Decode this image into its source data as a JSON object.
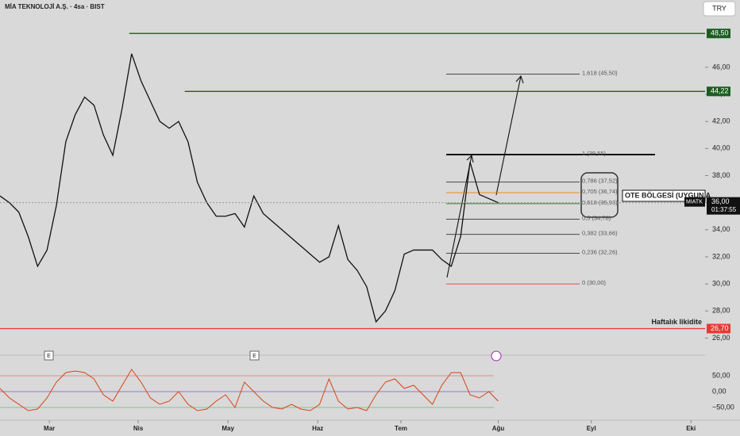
{
  "chart_data": {
    "type": "line",
    "title": "MİA TEKNOLOJİ A.Ş. · 4sa · BIST",
    "currency_button": "TRY",
    "xlim": [
      0,
      150
    ],
    "xticks": [
      {
        "value": 10.5,
        "label": "Mar"
      },
      {
        "value": 29.4,
        "label": "Nis"
      },
      {
        "value": 48.5,
        "label": "May"
      },
      {
        "value": 67.6,
        "label": "Haz"
      },
      {
        "value": 85.3,
        "label": "Tem"
      },
      {
        "value": 106,
        "label": "Ağu"
      },
      {
        "value": 125.8,
        "label": "Eyl"
      },
      {
        "value": 147,
        "label": "Eki"
      }
    ],
    "ylim": [
      25.5,
      49.8
    ],
    "yticks": [
      {
        "value": 26,
        "label": "26,00"
      },
      {
        "value": 28,
        "label": "28,00"
      },
      {
        "value": 30,
        "label": "30,00"
      },
      {
        "value": 32,
        "label": "32,00"
      },
      {
        "value": 34,
        "label": "34,00"
      },
      {
        "value": 36,
        "label": "36,00"
      },
      {
        "value": 38,
        "label": "38,00"
      },
      {
        "value": 40,
        "label": "40,00"
      },
      {
        "value": 42,
        "label": "42,00"
      },
      {
        "value": 44,
        "label": "44,00"
      },
      {
        "value": 46,
        "label": "46,00"
      }
    ],
    "x": [
      0,
      2,
      4,
      6,
      8,
      10,
      12,
      14,
      16,
      18,
      20,
      22,
      24,
      26,
      28,
      30,
      32,
      34,
      36,
      38,
      40,
      42,
      44,
      46,
      48,
      50,
      52,
      54,
      56,
      58,
      60,
      62,
      64,
      66,
      68,
      70,
      72,
      74,
      76,
      78,
      80,
      82,
      84,
      86,
      88,
      90,
      92,
      94,
      96,
      98,
      100,
      102,
      104,
      106
    ],
    "series": [
      {
        "color": "#111111",
        "values": [
          36.5,
          36,
          35.3,
          33.5,
          31.3,
          32.5,
          35.8,
          40.5,
          42.5,
          43.8,
          43.2,
          41,
          39.5,
          43,
          47,
          45,
          43.5,
          42,
          41.5,
          42,
          40.5,
          37.5,
          36,
          35,
          35,
          35.2,
          34.2,
          36.5,
          35.2,
          34.6,
          34,
          33.4,
          32.8,
          32.2,
          31.6,
          32,
          34.3,
          31.8,
          31,
          29.8,
          27.2,
          28,
          29.5,
          32.2,
          32.5,
          32.5,
          32.5,
          31.8,
          31.3,
          33.5,
          39,
          36.6,
          36.3,
          36
        ]
      }
    ],
    "levels": [
      {
        "value": 48.5,
        "label": "48,50",
        "color": "#1b5e20",
        "start": 27.5
      },
      {
        "value": 44.22,
        "label": "44,22",
        "color": "#1b5e20",
        "start": 39.3
      },
      {
        "value": 26.7,
        "label": "26,70",
        "color": "#e53935",
        "start": 0,
        "text": "Haftalık likidite"
      }
    ],
    "fib_levels": [
      {
        "value": 45.5,
        "label": "1,618 (45,50)",
        "color": "#333333"
      },
      {
        "value": 39.55,
        "label": "1 (39,55)",
        "color": "#111111"
      },
      {
        "value": 37.52,
        "label": "0,786 (37,52)",
        "color": "#333333"
      },
      {
        "value": 36.74,
        "label": "0,705 (36,74)",
        "color": "#f57c00"
      },
      {
        "value": 35.93,
        "label": "0,618 (35,93)",
        "color": "#2e7d32"
      },
      {
        "value": 34.78,
        "label": "0,5 (34,78)",
        "color": "#333333"
      },
      {
        "value": 33.66,
        "label": "0,382 (33,66)",
        "color": "#333333"
      },
      {
        "value": 32.26,
        "label": "0,236 (32,26)",
        "color": "#333333"
      },
      {
        "value": 30,
        "label": "0 (30,00)",
        "color": "#e53935"
      }
    ],
    "last_price": {
      "value": 36,
      "label": "36,00",
      "countdown": "01:37:55",
      "symbol": "MIATK"
    },
    "annotation": "OTE BÖLGESİ (UYGUN A",
    "event_markers": [
      "E",
      "E"
    ],
    "oscillator": {
      "ylim": [
        -77.5,
        90
      ],
      "yticks": [
        {
          "value": 50,
          "label": "50,00"
        },
        {
          "value": 0,
          "label": "0,00"
        },
        {
          "value": -50,
          "label": "−50,00"
        }
      ],
      "color": "#d84315",
      "values": [
        10,
        -20,
        -40,
        -60,
        -55,
        -20,
        30,
        60,
        65,
        60,
        40,
        -10,
        -30,
        20,
        70,
        30,
        -20,
        -40,
        -30,
        0,
        -40,
        -60,
        -55,
        -30,
        -10,
        -50,
        30,
        0,
        -30,
        -50,
        -55,
        -40,
        -55,
        -60,
        -40,
        40,
        -30,
        -55,
        -50,
        -60,
        -10,
        30,
        40,
        10,
        20,
        -10,
        -40,
        20,
        60,
        60,
        -10,
        -20,
        0,
        -30
      ]
    }
  }
}
